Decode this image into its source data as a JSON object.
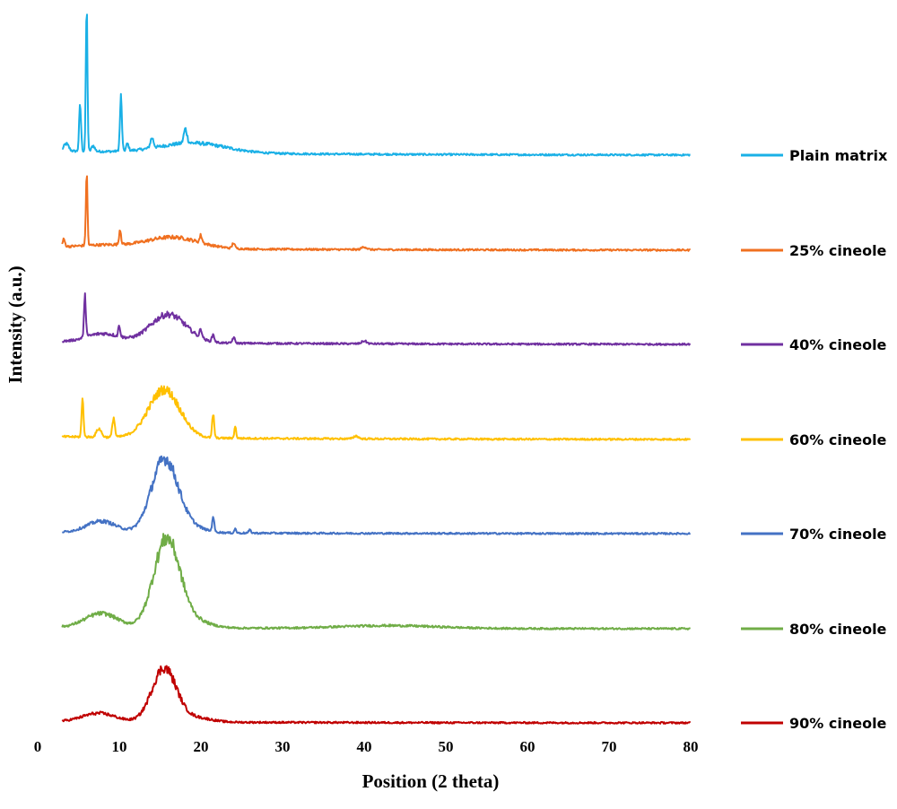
{
  "chart_data": {
    "type": "line",
    "title": "",
    "xlabel": "Position (2 theta)",
    "ylabel": "Intensity (a.u.)",
    "xlim": [
      0,
      80
    ],
    "xticks": [
      "0",
      "10",
      "20",
      "30",
      "40",
      "50",
      "60",
      "70",
      "80"
    ],
    "y_axis_values_shown": false,
    "grid": false,
    "legend_position": "right",
    "series": [
      {
        "name": "Plain matrix",
        "color": "#1ab0e6",
        "baseline": 0.03,
        "peaks": [
          [
            5.2,
            0.32,
            0.12
          ],
          [
            6.0,
            1.0,
            0.1
          ],
          [
            10.2,
            0.38,
            0.12
          ],
          [
            14.0,
            0.07,
            0.2
          ],
          [
            18.1,
            0.1,
            0.2
          ],
          [
            3.5,
            0.05,
            0.3
          ],
          [
            6.8,
            0.04,
            0.2
          ],
          [
            11.0,
            0.05,
            0.15
          ]
        ],
        "humps": [
          [
            19.0,
            0.07,
            4.0
          ]
        ]
      },
      {
        "name": "25% cineole",
        "color": "#f07020",
        "baseline": 0.02,
        "peaks": [
          [
            6.0,
            0.5,
            0.1
          ],
          [
            10.1,
            0.11,
            0.12
          ],
          [
            3.2,
            0.05,
            0.15
          ],
          [
            20.0,
            0.05,
            0.15
          ],
          [
            24.0,
            0.04,
            0.15
          ],
          [
            40.0,
            0.02,
            0.3
          ]
        ],
        "humps": [
          [
            16.5,
            0.08,
            3.2
          ],
          [
            8.0,
            0.02,
            3.0
          ]
        ]
      },
      {
        "name": "40% cineole",
        "color": "#7030a0",
        "baseline": 0.02,
        "peaks": [
          [
            5.8,
            0.28,
            0.12
          ],
          [
            10.0,
            0.08,
            0.12
          ],
          [
            20.0,
            0.06,
            0.15
          ],
          [
            21.5,
            0.05,
            0.15
          ],
          [
            24.0,
            0.04,
            0.15
          ],
          [
            40.0,
            0.02,
            0.3
          ]
        ],
        "humps": [
          [
            16.0,
            0.2,
            2.2
          ],
          [
            8.0,
            0.06,
            2.0
          ]
        ]
      },
      {
        "name": "60% cineole",
        "color": "#ffc000",
        "baseline": 0.02,
        "peaks": [
          [
            5.5,
            0.26,
            0.12
          ],
          [
            9.3,
            0.14,
            0.15
          ],
          [
            21.5,
            0.17,
            0.12
          ],
          [
            24.2,
            0.08,
            0.12
          ],
          [
            7.5,
            0.06,
            0.3
          ],
          [
            39.0,
            0.02,
            0.3
          ]
        ],
        "humps": [
          [
            15.5,
            0.34,
            1.9
          ]
        ]
      },
      {
        "name": "70% cineole",
        "color": "#4472c4",
        "baseline": 0.01,
        "peaks": [
          [
            21.5,
            0.11,
            0.12
          ],
          [
            24.2,
            0.03,
            0.12
          ],
          [
            26.0,
            0.02,
            0.15
          ]
        ],
        "humps": [
          [
            15.5,
            0.5,
            1.6
          ],
          [
            7.8,
            0.08,
            1.8
          ],
          [
            18.0,
            0.05,
            2.0
          ]
        ]
      },
      {
        "name": "80% cineole",
        "color": "#70ad47",
        "baseline": 0.01,
        "peaks": [],
        "humps": [
          [
            15.8,
            0.62,
            1.6
          ],
          [
            7.8,
            0.1,
            2.0
          ],
          [
            43.0,
            0.02,
            6.0
          ],
          [
            19.0,
            0.05,
            2.0
          ]
        ]
      },
      {
        "name": "90% cineole",
        "color": "#c00000",
        "baseline": 0.01,
        "peaks": [],
        "humps": [
          [
            15.5,
            0.38,
            1.5
          ],
          [
            7.5,
            0.06,
            2.0
          ],
          [
            19.5,
            0.03,
            1.8
          ]
        ]
      }
    ]
  }
}
